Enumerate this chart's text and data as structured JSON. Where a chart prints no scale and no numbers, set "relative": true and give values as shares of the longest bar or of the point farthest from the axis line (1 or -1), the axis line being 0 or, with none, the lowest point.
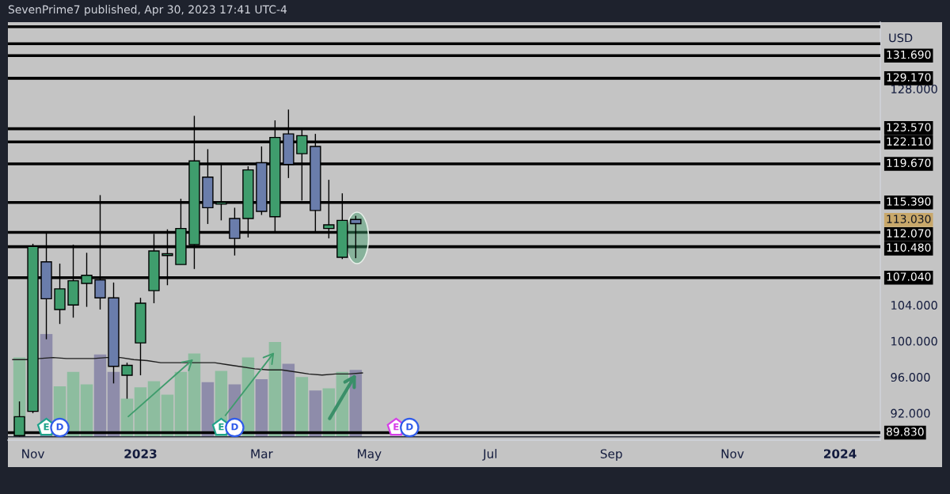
{
  "chart_data": [
    {
      "type": "candlestick",
      "title": "SevenPrime7 published, Apr 30, 2023 17:41 UTC-4",
      "ylabel": "USD",
      "x": [
        "2022-10-31",
        "2022-11-07",
        "2022-11-14",
        "2022-11-21",
        "2022-11-28",
        "2022-12-05",
        "2022-12-12",
        "2022-12-19",
        "2022-12-26",
        "2023-01-02",
        "2023-01-09",
        "2023-01-16",
        "2023-01-23",
        "2023-01-30",
        "2023-02-06",
        "2023-02-13",
        "2023-02-20",
        "2023-02-27",
        "2023-03-06",
        "2023-03-13",
        "2023-03-20",
        "2023-03-27",
        "2023-04-03",
        "2023-04-10",
        "2023-04-17",
        "2023-04-24"
      ],
      "ohlc": [
        [
          89.5,
          93.3,
          89.4,
          91.6
        ],
        [
          92.2,
          110.8,
          92.0,
          110.5
        ],
        [
          108.8,
          112.0,
          100.2,
          104.7
        ],
        [
          103.5,
          108.6,
          101.9,
          105.8
        ],
        [
          104.0,
          110.7,
          102.6,
          106.7
        ],
        [
          106.4,
          109.8,
          103.8,
          107.3
        ],
        [
          106.8,
          116.2,
          103.5,
          104.8
        ],
        [
          104.8,
          106.5,
          95.3,
          97.2
        ],
        [
          96.2,
          97.6,
          93.6,
          97.3
        ],
        [
          99.8,
          104.8,
          96.2,
          104.2
        ],
        [
          105.6,
          111.9,
          104.2,
          110.0
        ],
        [
          109.5,
          112.4,
          106.2,
          109.7
        ],
        [
          108.5,
          115.8,
          108.5,
          112.5
        ],
        [
          110.7,
          125.0,
          108.0,
          120.0
        ],
        [
          118.2,
          121.3,
          113.0,
          114.8
        ],
        [
          115.2,
          119.6,
          113.4,
          115.4
        ],
        [
          113.6,
          114.8,
          109.5,
          111.4
        ],
        [
          113.6,
          119.4,
          111.5,
          119.0
        ],
        [
          119.8,
          121.6,
          114.0,
          114.4
        ],
        [
          113.8,
          124.5,
          112.1,
          122.6
        ],
        [
          123.0,
          125.7,
          118.1,
          119.6
        ],
        [
          120.8,
          123.5,
          115.6,
          122.8
        ],
        [
          121.6,
          123.0,
          112.0,
          114.5
        ],
        [
          112.5,
          117.9,
          111.4,
          112.9
        ],
        [
          109.3,
          116.4,
          109.1,
          113.4
        ],
        [
          113.5,
          113.9,
          109.2,
          113.03
        ]
      ],
      "colors": [
        "#3f9d6d",
        "#3f9d6d",
        "#6a7dab",
        "#3f9d6d",
        "#3f9d6d",
        "#3f9d6d",
        "#6a7dab",
        "#6a7dab",
        "#3f9d6d",
        "#3f9d6d",
        "#3f9d6d",
        "#3f9d6d",
        "#3f9d6d",
        "#3f9d6d",
        "#6a7dab",
        "#3f9d6d",
        "#6a7dab",
        "#3f9d6d",
        "#6a7dab",
        "#3f9d6d",
        "#6a7dab",
        "#3f9d6d",
        "#6a7dab",
        "#3f9d6d",
        "#3f9d6d",
        "#6a7dab"
      ],
      "xlim": [
        "2022-10-25",
        "2024-01-22"
      ],
      "xticks": [
        {
          "value": "2022-11-07",
          "label": "Nov"
        },
        {
          "value": "2023-01-02",
          "label": "2023"
        },
        {
          "value": "2023-03-06",
          "label": "Mar"
        },
        {
          "value": "2023-05-01",
          "label": "May"
        },
        {
          "value": "2023-07-03",
          "label": "Jul"
        },
        {
          "value": "2023-09-04",
          "label": "Sep"
        },
        {
          "value": "2023-11-06",
          "label": "Nov"
        },
        {
          "value": "2024-01-01",
          "label": "2024"
        }
      ],
      "ylim": [
        89.0,
        135.4
      ],
      "yticks": [
        {
          "value": 92,
          "label": "92.000"
        },
        {
          "value": 96,
          "label": "96.000"
        },
        {
          "value": 100,
          "label": "100.000"
        },
        {
          "value": 104,
          "label": "104.000"
        },
        {
          "value": 128,
          "label": "128.000"
        }
      ],
      "ref_lines": [
        {
          "axis": "y",
          "value": 134.9,
          "color": "#000000"
        },
        {
          "axis": "y",
          "value": 133.0,
          "color": "#000000"
        },
        {
          "axis": "y",
          "value": 131.69,
          "label": "131.690",
          "color": "#000000"
        },
        {
          "axis": "y",
          "value": 129.17,
          "label": "129.170",
          "color": "#000000"
        },
        {
          "axis": "y",
          "value": 123.57,
          "label": "123.570",
          "color": "#000000"
        },
        {
          "axis": "y",
          "value": 122.11,
          "label": "122.110",
          "color": "#000000"
        },
        {
          "axis": "y",
          "value": 119.67,
          "label": "119.670",
          "color": "#000000"
        },
        {
          "axis": "y",
          "value": 115.39,
          "label": "115.390",
          "color": "#000000"
        },
        {
          "axis": "y",
          "value": 112.07,
          "label": "112.070",
          "color": "#000000"
        },
        {
          "axis": "y",
          "value": 110.48,
          "label": "110.480",
          "color": "#000000"
        },
        {
          "axis": "y",
          "value": 107.04,
          "label": "107.040",
          "color": "#000000"
        },
        {
          "axis": "y",
          "value": 89.83,
          "label": "89.830",
          "color": "#000000"
        }
      ],
      "annotations": [
        "113.030",
        {
          "text": "E",
          "x": "2022-11-14",
          "y": 90.4
        },
        {
          "text": "D",
          "x": "2022-11-21",
          "y": 90.4
        },
        {
          "text": "E",
          "x": "2023-02-13",
          "y": 90.4
        },
        {
          "text": "D",
          "x": "2023-02-20",
          "y": 90.4
        },
        {
          "text": "E",
          "x": "2023-05-15",
          "y": 90.4
        },
        {
          "text": "D",
          "x": "2023-05-22",
          "y": 90.4
        }
      ]
    },
    {
      "type": "bar",
      "relative": true,
      "x": [
        "2022-10-31",
        "2022-11-07",
        "2022-11-14",
        "2022-11-21",
        "2022-11-28",
        "2022-12-05",
        "2022-12-12",
        "2022-12-19",
        "2022-12-26",
        "2023-01-02",
        "2023-01-09",
        "2023-01-16",
        "2023-01-23",
        "2023-01-30",
        "2023-02-06",
        "2023-02-13",
        "2023-02-20",
        "2023-02-27",
        "2023-03-06",
        "2023-03-13",
        "2023-03-20",
        "2023-03-27",
        "2023-04-03",
        "2023-04-10",
        "2023-04-17",
        "2023-04-24"
      ],
      "xlim": [
        "2022-10-25",
        "2024-01-22"
      ],
      "series": [
        {
          "type": "bar",
          "values": [
            0.77,
            null,
            1.0,
            0.49,
            0.63,
            0.51,
            0.8,
            0.63,
            0.37,
            0.48,
            0.54,
            0.41,
            0.63,
            0.81,
            0.53,
            0.64,
            0.51,
            0.77,
            0.56,
            0.92,
            0.71,
            0.58,
            0.45,
            0.47,
            0.63,
            0.65
          ],
          "colors": [
            "#8dbd9f",
            "#8dbd9f",
            "#8e8caa",
            "#8dbd9f",
            "#8dbd9f",
            "#8dbd9f",
            "#8e8caa",
            "#8e8caa",
            "#8dbd9f",
            "#8dbd9f",
            "#8dbd9f",
            "#8dbd9f",
            "#8dbd9f",
            "#8dbd9f",
            "#8e8caa",
            "#8dbd9f",
            "#8e8caa",
            "#8dbd9f",
            "#8e8caa",
            "#8dbd9f",
            "#8e8caa",
            "#8dbd9f",
            "#8e8caa",
            "#8dbd9f",
            "#8dbd9f",
            "#8e8caa"
          ]
        },
        {
          "type": "line",
          "color": "#1e1e1e",
          "x": [
            "2022-10-27T12:00",
            "2022-11-03T12:00",
            "2022-11-10T12:00",
            "2022-11-17T12:00",
            "2022-11-24T12:00",
            "2022-12-01T12:00",
            "2022-12-08T12:00",
            "2022-12-15T12:00",
            "2022-12-22T12:00",
            "2022-12-29T12:00",
            "2023-01-05T12:00",
            "2023-01-12T12:00",
            "2023-01-19T12:00",
            "2023-01-26T12:00",
            "2023-02-02T12:00",
            "2023-02-09T12:00",
            "2023-02-16T12:00",
            "2023-02-23T12:00",
            "2023-03-02T12:00",
            "2023-03-09T12:00",
            "2023-03-16T12:00",
            "2023-03-23T12:00",
            "2023-03-30T12:00",
            "2023-04-06T12:00",
            "2023-04-13T12:00",
            "2023-04-20T12:00",
            "2023-04-27T12:00"
          ],
          "values": [
            0.75,
            0.75,
            0.76,
            0.77,
            0.76,
            0.76,
            0.76,
            0.77,
            0.77,
            0.75,
            0.74,
            0.72,
            0.72,
            0.72,
            0.72,
            0.72,
            0.7,
            0.68,
            0.66,
            0.65,
            0.65,
            0.63,
            0.61,
            0.6,
            0.61,
            0.61,
            0.62
          ]
        }
      ]
    }
  ]
}
